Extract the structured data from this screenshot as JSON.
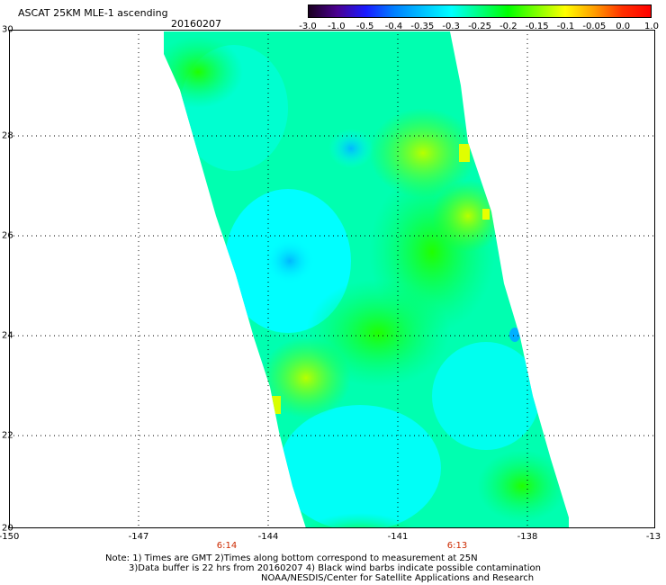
{
  "header": {
    "title": "ASCAT 25KM MLE-1 ascending",
    "date": "20160207"
  },
  "colorbar": {
    "labels": [
      "-3.0",
      "-1.0",
      "-0.5",
      "-0.4",
      "-0.35",
      "-0.3",
      "-0.25",
      "-0.2",
      "-0.15",
      "-0.1",
      "-0.05",
      "0.0",
      "1.0"
    ],
    "colors": [
      "#1a0020",
      "#4b0090",
      "#1a1aff",
      "#0080ff",
      "#00c0ff",
      "#00ffff",
      "#00ff80",
      "#00ff00",
      "#80ff00",
      "#ffff00",
      "#ffa000",
      "#ff3000",
      "#ff0000"
    ]
  },
  "axes": {
    "y_ticks": [
      "30",
      "28",
      "26",
      "24",
      "22",
      "20"
    ],
    "x_ticks": [
      "-150",
      "-147",
      "-144",
      "-141",
      "-138",
      "-13"
    ],
    "times": [
      "6:14",
      "6:13"
    ]
  },
  "swath_colors": {
    "cyan": "#00ffff",
    "cyan_green": "#00ffb0",
    "green": "#00ff00",
    "lime": "#40ff20",
    "blue": "#00c8ff",
    "yellow_green": "#b0ff00"
  },
  "notes": {
    "line1": "Note: 1) Times are GMT 2)Times along bottom correspond to measurement at 25N",
    "line2": "3)Data buffer is 22 hrs from 20160207 4) Black wind barbs indicate possible contamination",
    "line3": "NOAA/NESDIS/Center for Satellite Applications and Research"
  }
}
